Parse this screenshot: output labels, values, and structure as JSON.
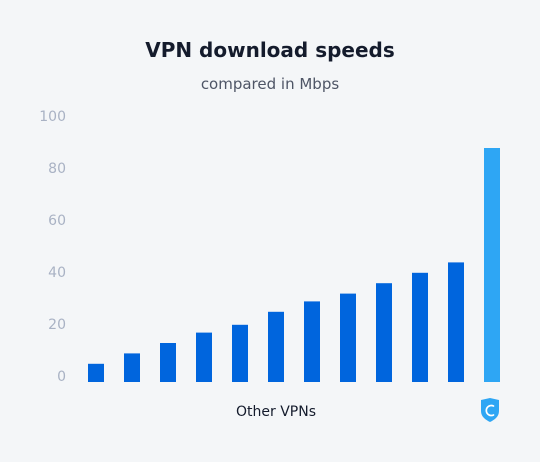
{
  "chart_data": {
    "type": "bar",
    "title": "VPN download speeds",
    "subtitle": "compared in Mbps",
    "xlabel": "Other VPNs",
    "ylabel": "",
    "ylim": [
      0,
      100
    ],
    "yticks": [
      0,
      20,
      40,
      60,
      80,
      100
    ],
    "values": [
      7,
      11,
      15,
      19,
      22,
      27,
      31,
      34,
      38,
      42,
      46,
      90
    ],
    "highlight_index": 11,
    "grid": false,
    "legend": false
  },
  "colors": {
    "bar": "#0065dd",
    "highlight_bar": "#2ea6f4",
    "tick": "#a9b2c4",
    "background": "#f4f6f8"
  },
  "icons": {
    "highlight": "shield-icon"
  }
}
